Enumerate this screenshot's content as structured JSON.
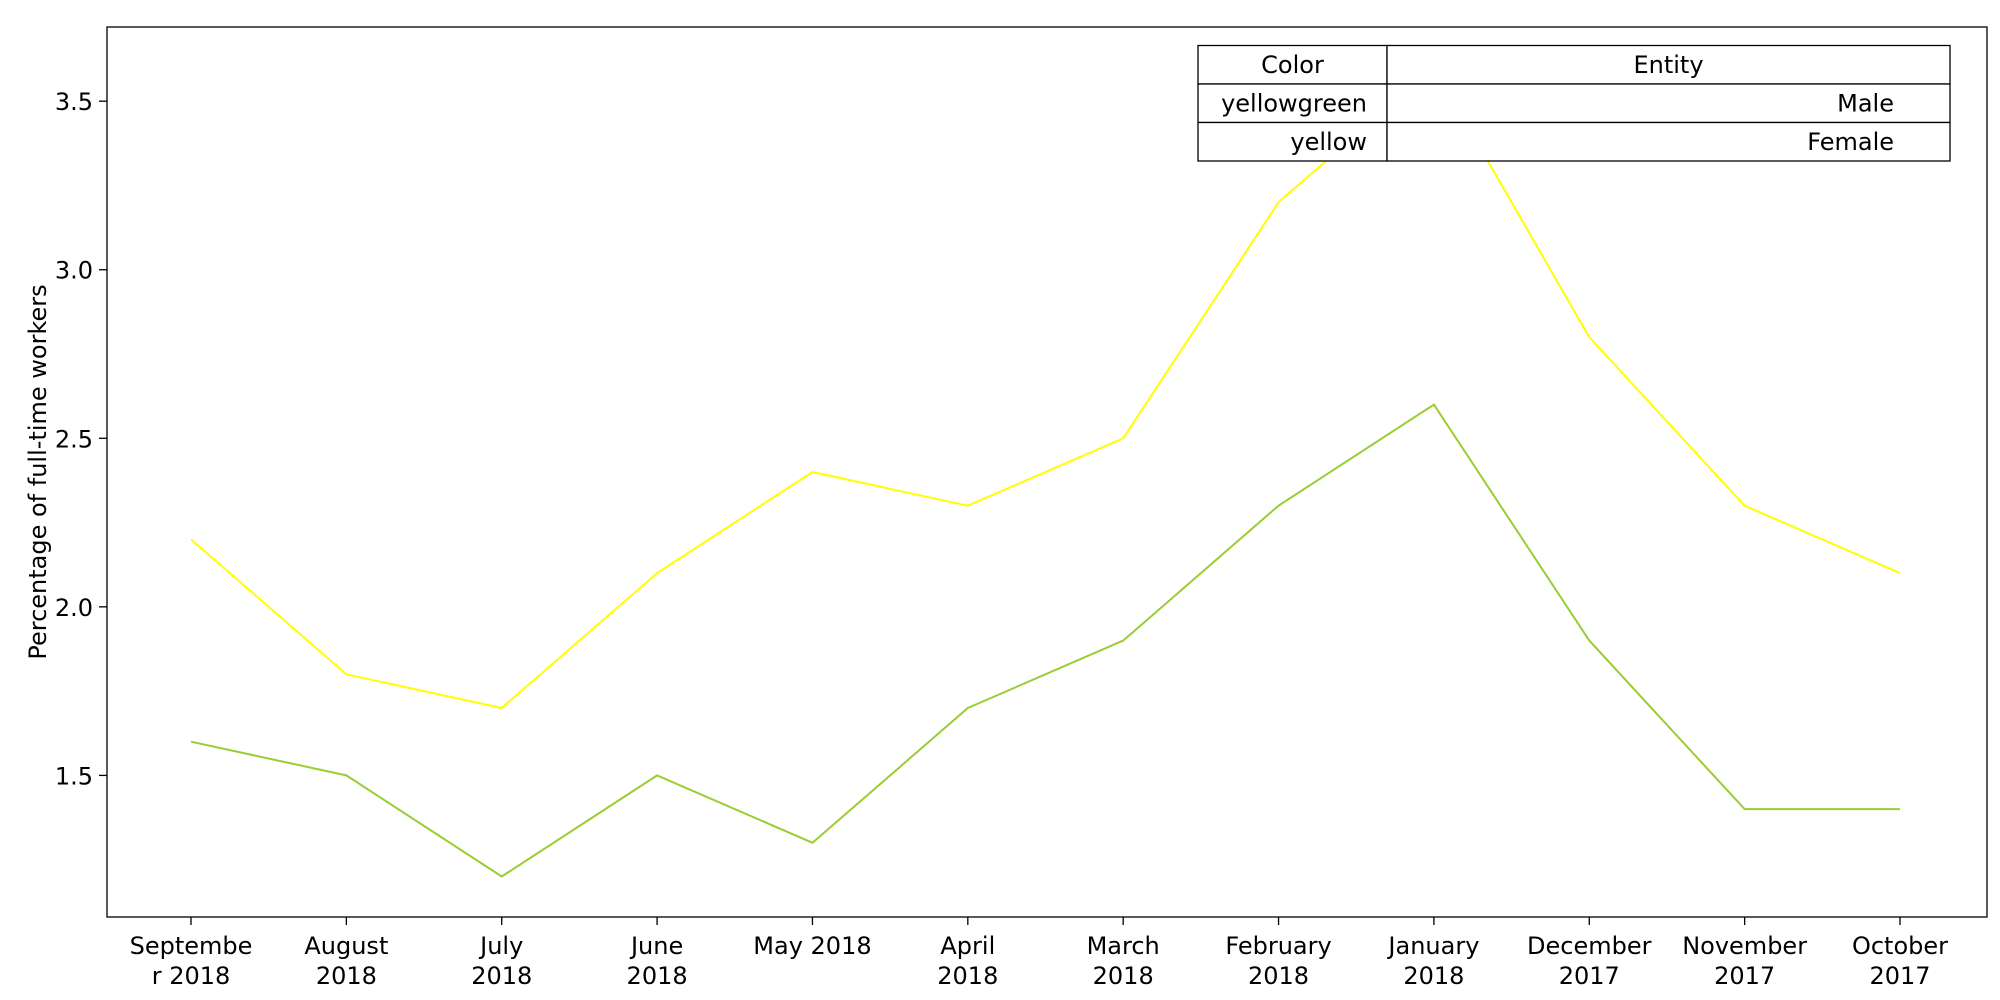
{
  "chart_data": {
    "type": "line",
    "title": "",
    "xlabel": "",
    "ylabel": "Percentage of full-time workers",
    "categories": [
      "Septembe\nr 2018",
      "August\n2018",
      "July\n2018",
      "June\n2018",
      "May 2018",
      "April\n2018",
      "March\n2018",
      "February\n2018",
      "January\n2018",
      "December\n2017",
      "November\n2017",
      "October\n2017"
    ],
    "series": [
      {
        "name": "Male",
        "color": "yellowgreen",
        "stroke": "#9acd32",
        "values": [
          1.6,
          1.5,
          1.2,
          1.5,
          1.3,
          1.7,
          1.9,
          2.3,
          2.6,
          1.9,
          1.4,
          1.4
        ]
      },
      {
        "name": "Female",
        "color": "yellow",
        "stroke": "#ffff00",
        "values": [
          2.2,
          1.8,
          1.7,
          2.1,
          2.4,
          2.3,
          2.5,
          3.2,
          3.6,
          2.8,
          2.3,
          2.1
        ]
      }
    ],
    "ylim": [
      1.08,
      3.72
    ],
    "yticks": [
      "1.5",
      "2.0",
      "2.5",
      "3.0",
      "3.5"
    ],
    "grid": false,
    "legend": {
      "placement": "top-right",
      "header": [
        "Color",
        "Entity"
      ],
      "rows": [
        [
          "yellowgreen",
          "Male"
        ],
        [
          "yellow",
          "Female"
        ]
      ]
    }
  }
}
